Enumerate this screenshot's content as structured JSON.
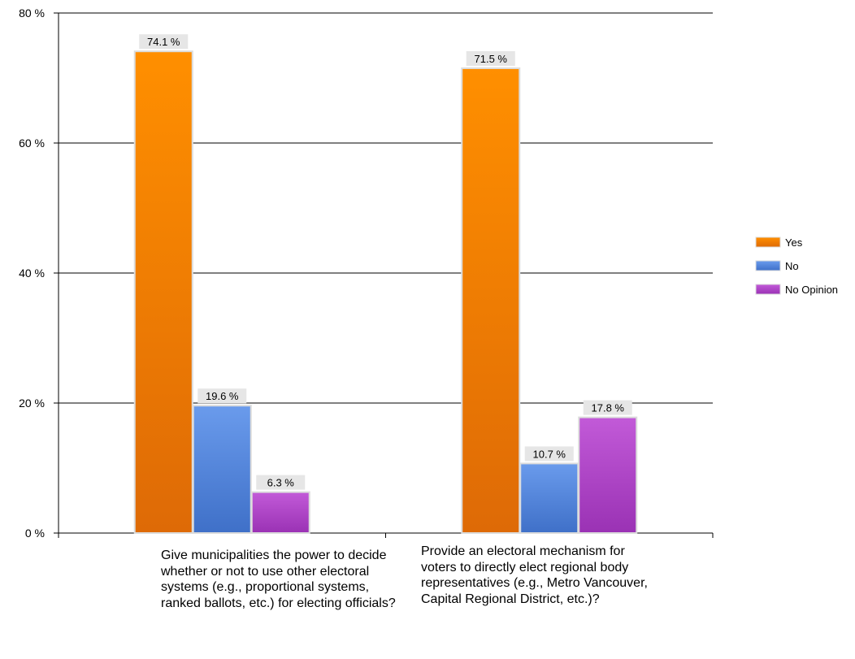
{
  "chart_data": {
    "type": "bar",
    "categories": [
      "Give municipalities the power to decide whether or not to use other electoral systems (e.g., proportional systems, ranked ballots, etc.) for electing officials?",
      "Provide an electoral mechanism for voters to directly elect regional body representatives (e.g., Metro Vancouver, Capital Regional District, etc.)?"
    ],
    "series": [
      {
        "name": "Yes",
        "values": [
          74.1,
          71.5
        ],
        "labels": [
          "74.1 %",
          "71.5 %"
        ],
        "color": "#f58a0c"
      },
      {
        "name": "No",
        "values": [
          19.6,
          10.7
        ],
        "labels": [
          "19.6 %",
          "10.7 %"
        ],
        "color": "#5b8fe0"
      },
      {
        "name": "No Opinion",
        "values": [
          6.3,
          17.8
        ],
        "labels": [
          "6.3 %",
          "17.8 %"
        ],
        "color": "#b14bc8"
      }
    ],
    "yticks": [
      0,
      20,
      40,
      60,
      80
    ],
    "ytick_labels": [
      "0 %",
      "20 %",
      "40 %",
      "60 %",
      "80 %"
    ],
    "ylim": [
      0,
      80
    ],
    "grid": true,
    "legend": "right",
    "title": "",
    "xlabel": "",
    "ylabel": ""
  }
}
